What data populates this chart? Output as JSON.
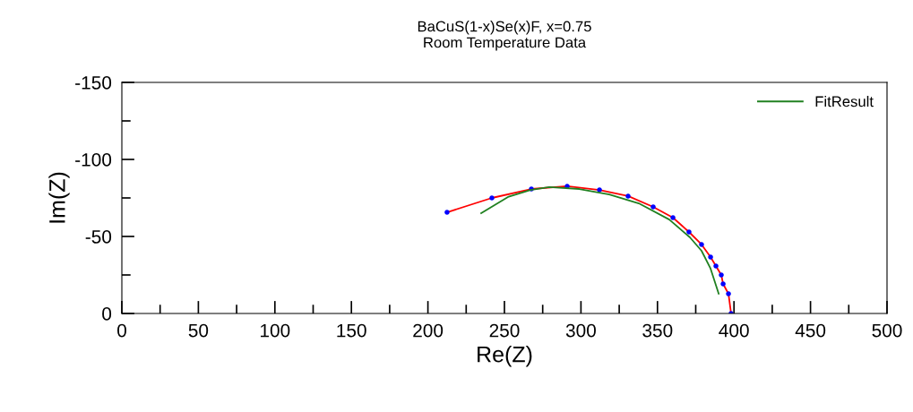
{
  "chart_data": {
    "type": "line",
    "title": "BaCuS(1-x)Se(x)F, x=0.75\nRoom Temperature Data",
    "xlabel": "Re(Z)",
    "ylabel": "Im(Z)",
    "series": [
      {
        "color": "#ff0000",
        "marker": "circle",
        "x": [
          212.5,
          241.8,
          267.6,
          291.0,
          312.1,
          330.8,
          347.2,
          360.1,
          370.6,
          378.8,
          384.7,
          388.2,
          391.7,
          392.9,
          396.4,
          398.1
        ],
        "values": [
          -65.7,
          -75.0,
          -80.8,
          -82.6,
          -80.2,
          -76.2,
          -69.2,
          -62.2,
          -52.9,
          -44.8,
          -36.6,
          -30.8,
          -25.0,
          -19.2,
          -12.8,
          0
        ]
      },
      {
        "name": "FitResult",
        "color": "#208020",
        "marker": "none",
        "x": [
          234.8,
          252.3,
          267.0,
          279.3,
          299.0,
          318.5,
          337.8,
          357.7,
          371.2,
          378.8,
          384.7,
          390.0
        ],
        "values": [
          -65.1,
          -75.6,
          -80.2,
          -82.0,
          -80.8,
          -77.3,
          -71.5,
          -61.0,
          -49.4,
          -40.7,
          -29.1,
          -12.8
        ]
      }
    ],
    "xlim": [
      0,
      500
    ],
    "xticks": [
      0,
      {
        "value": 25,
        "label": null
      },
      50,
      {
        "value": 75,
        "label": null
      },
      100,
      {
        "value": 125,
        "label": null
      },
      150,
      {
        "value": 175,
        "label": null
      },
      200,
      {
        "value": 225,
        "label": null
      },
      250,
      {
        "value": 275,
        "label": null
      },
      300,
      {
        "value": 325,
        "label": null
      },
      350,
      {
        "value": 375,
        "label": null
      },
      400,
      {
        "value": 425,
        "label": null
      },
      450,
      {
        "value": 475,
        "label": null
      },
      500
    ],
    "ylim": [
      0,
      -150
    ],
    "yticks": [
      0,
      {
        "value": -25,
        "label": null
      },
      -50,
      {
        "value": -75,
        "label": null
      },
      -100,
      {
        "value": -125,
        "label": null
      },
      -150
    ],
    "legend": "top right",
    "grid": false
  }
}
